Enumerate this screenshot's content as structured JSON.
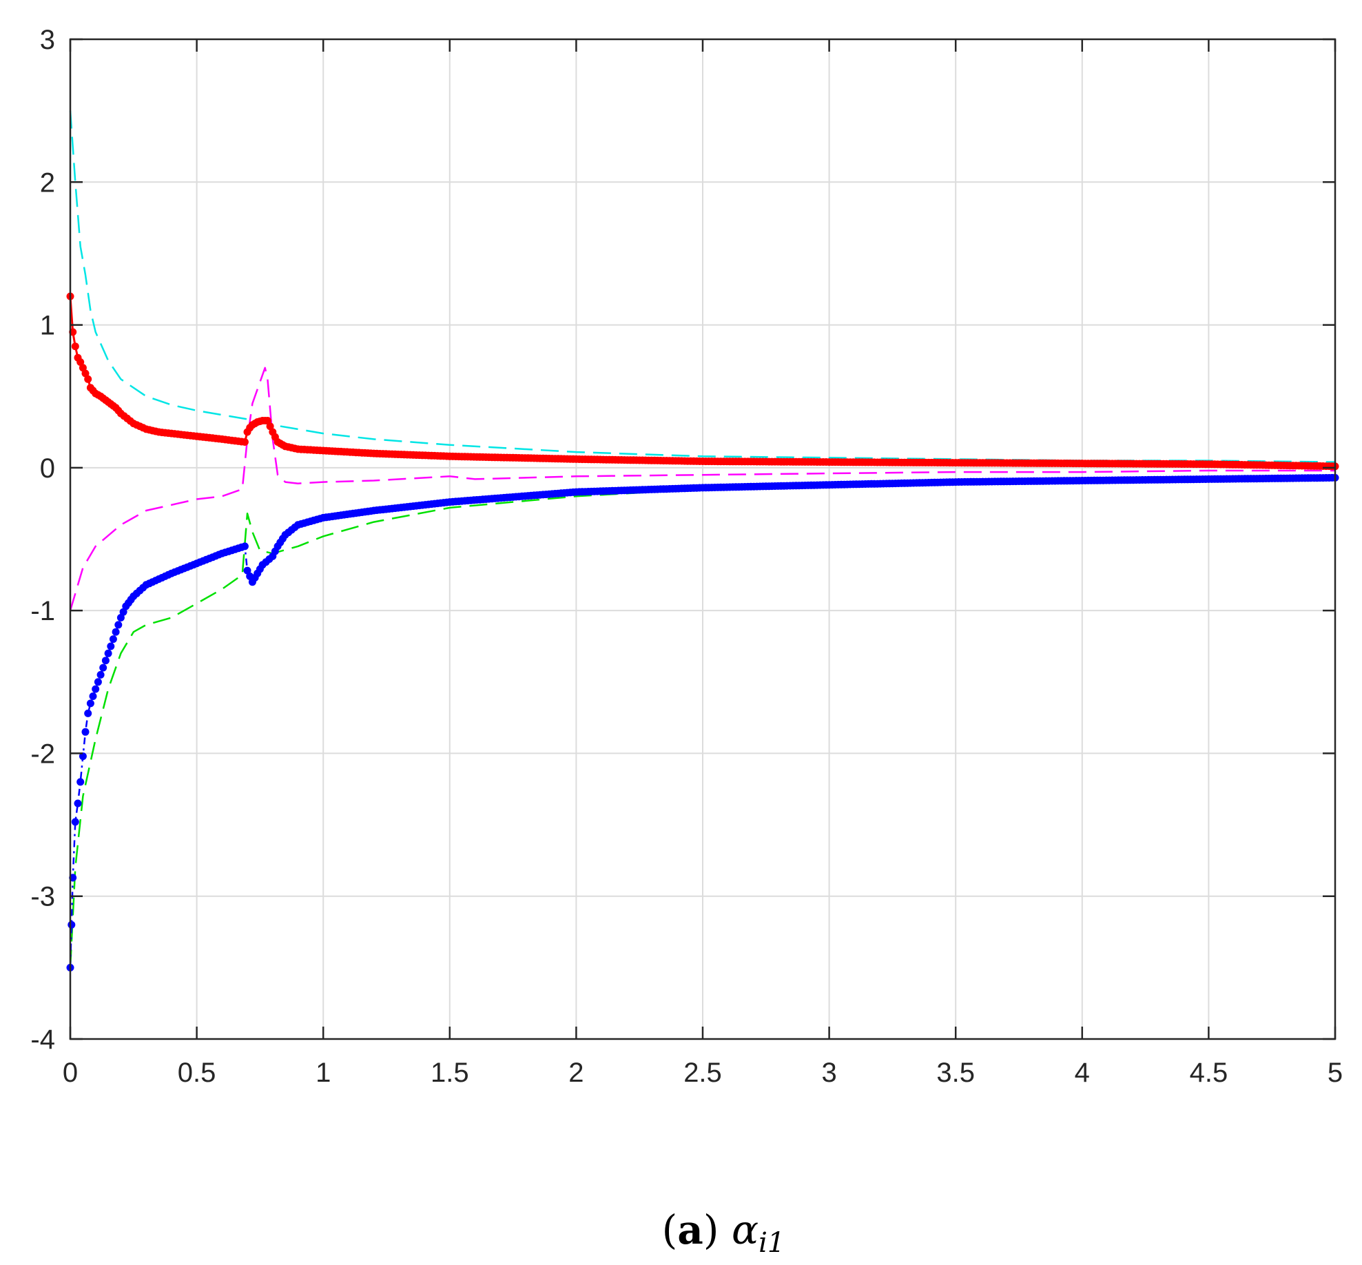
{
  "chart_data": {
    "type": "line",
    "xlim": [
      0,
      5
    ],
    "ylim": [
      -4,
      3
    ],
    "xticks": [
      "0",
      "0.5",
      "1",
      "1.5",
      "2",
      "2.5",
      "3",
      "3.5",
      "4",
      "4.5",
      "5"
    ],
    "yticks": [
      "3",
      "2",
      "1",
      "0",
      "-1",
      "-2",
      "-3",
      "-4"
    ],
    "grid": true,
    "caption": {
      "label": "a",
      "symbol": "α",
      "subscript": "i1"
    },
    "series": [
      {
        "color": "#00e5e5",
        "style": "dashed",
        "x": [
          0,
          0.02,
          0.04,
          0.06,
          0.08,
          0.1,
          0.15,
          0.2,
          0.3,
          0.4,
          0.5,
          0.6,
          0.7,
          0.8,
          1.0,
          1.2,
          1.5,
          2.0,
          2.5,
          3.0,
          3.5,
          4.0,
          4.5,
          5.0
        ],
        "y": [
          2.5,
          2.0,
          1.55,
          1.35,
          1.1,
          0.95,
          0.75,
          0.62,
          0.5,
          0.44,
          0.4,
          0.37,
          0.34,
          0.3,
          0.24,
          0.2,
          0.16,
          0.11,
          0.08,
          0.07,
          0.06,
          0.05,
          0.05,
          0.04
        ]
      },
      {
        "color": "#ff00ff",
        "style": "dashed",
        "x": [
          0,
          0.05,
          0.1,
          0.2,
          0.3,
          0.4,
          0.5,
          0.6,
          0.68,
          0.7,
          0.72,
          0.75,
          0.77,
          0.78,
          0.8,
          0.82,
          0.85,
          0.9,
          1.0,
          1.2,
          1.5,
          1.6,
          2.0,
          2.5,
          3.0,
          3.5,
          4.0,
          4.5,
          5.0
        ],
        "y": [
          -1.0,
          -0.7,
          -0.55,
          -0.4,
          -0.3,
          -0.26,
          -0.22,
          -0.2,
          -0.15,
          0.2,
          0.45,
          0.6,
          0.7,
          0.62,
          0.2,
          -0.05,
          -0.1,
          -0.11,
          -0.1,
          -0.09,
          -0.06,
          -0.08,
          -0.06,
          -0.05,
          -0.04,
          -0.03,
          -0.03,
          -0.02,
          -0.02
        ]
      },
      {
        "color": "#00e000",
        "style": "dashed",
        "x": [
          0,
          0.02,
          0.05,
          0.1,
          0.15,
          0.2,
          0.25,
          0.3,
          0.4,
          0.5,
          0.6,
          0.68,
          0.7,
          0.72,
          0.75,
          0.8,
          0.9,
          1.0,
          1.2,
          1.5,
          2.0,
          2.5,
          3.0,
          3.5,
          4.0,
          4.5,
          5.0
        ],
        "y": [
          -3.5,
          -2.8,
          -2.3,
          -1.9,
          -1.55,
          -1.3,
          -1.15,
          -1.1,
          -1.05,
          -0.95,
          -0.85,
          -0.75,
          -0.32,
          -0.45,
          -0.58,
          -0.6,
          -0.55,
          -0.48,
          -0.38,
          -0.28,
          -0.2,
          -0.15,
          -0.12,
          -0.1,
          -0.09,
          -0.08,
          -0.07
        ]
      },
      {
        "color": "#ff0000",
        "style": "solid-dotted",
        "x": [
          0,
          0.01,
          0.02,
          0.03,
          0.04,
          0.05,
          0.06,
          0.07,
          0.08,
          0.1,
          0.12,
          0.15,
          0.18,
          0.2,
          0.25,
          0.3,
          0.35,
          0.4,
          0.5,
          0.6,
          0.69,
          0.7,
          0.71,
          0.72,
          0.74,
          0.76,
          0.78,
          0.8,
          0.82,
          0.85,
          0.9,
          1.0,
          1.2,
          1.5,
          2.0,
          2.5,
          3.0,
          3.5,
          4.0,
          4.5,
          5.0
        ],
        "y": [
          1.2,
          0.95,
          0.85,
          0.77,
          0.74,
          0.7,
          0.66,
          0.62,
          0.56,
          0.52,
          0.5,
          0.46,
          0.42,
          0.38,
          0.31,
          0.27,
          0.25,
          0.24,
          0.22,
          0.2,
          0.18,
          0.25,
          0.28,
          0.3,
          0.32,
          0.33,
          0.33,
          0.25,
          0.18,
          0.15,
          0.13,
          0.12,
          0.1,
          0.08,
          0.06,
          0.045,
          0.04,
          0.035,
          0.03,
          0.025,
          0.01
        ]
      },
      {
        "color": "#0000ff",
        "style": "dashdot-dotted",
        "x": [
          0,
          0.005,
          0.01,
          0.02,
          0.03,
          0.04,
          0.05,
          0.06,
          0.07,
          0.08,
          0.1,
          0.12,
          0.15,
          0.18,
          0.2,
          0.22,
          0.25,
          0.3,
          0.35,
          0.4,
          0.5,
          0.6,
          0.69,
          0.7,
          0.72,
          0.74,
          0.76,
          0.8,
          0.82,
          0.85,
          0.9,
          1.0,
          1.2,
          1.5,
          2.0,
          2.5,
          3.0,
          3.5,
          4.0,
          4.5,
          5.0
        ],
        "y": [
          -3.5,
          -3.2,
          -2.87,
          -2.48,
          -2.35,
          -2.2,
          -2.02,
          -1.85,
          -1.72,
          -1.65,
          -1.55,
          -1.45,
          -1.3,
          -1.15,
          -1.05,
          -0.97,
          -0.9,
          -0.82,
          -0.78,
          -0.74,
          -0.67,
          -0.6,
          -0.55,
          -0.72,
          -0.8,
          -0.74,
          -0.68,
          -0.62,
          -0.55,
          -0.47,
          -0.4,
          -0.35,
          -0.3,
          -0.24,
          -0.17,
          -0.14,
          -0.12,
          -0.1,
          -0.09,
          -0.08,
          -0.07
        ]
      }
    ]
  }
}
